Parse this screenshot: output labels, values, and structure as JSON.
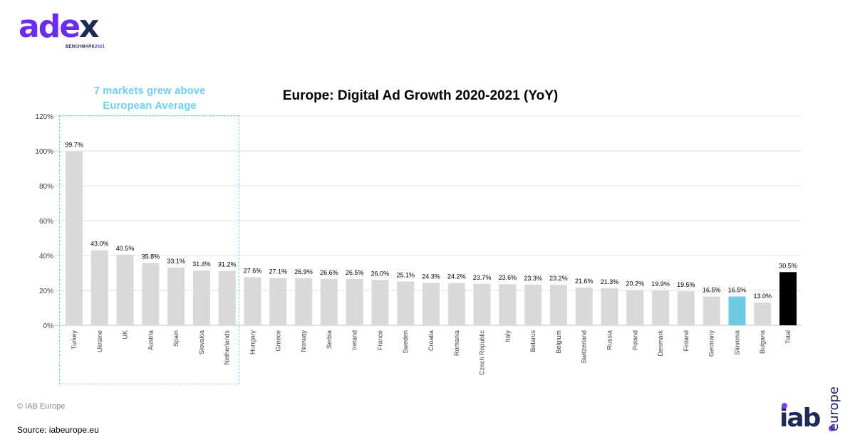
{
  "logo": {
    "brand": "adex",
    "sub": "BENCHMARK",
    "year": "2021"
  },
  "callout": {
    "line1": "7 markets grew above",
    "line2": "European Average"
  },
  "footer": {
    "copyright": "© IAB Europe",
    "source": "Source: iabeurope.eu"
  },
  "iab_logo": {
    "text": "iab",
    "sub": "europe"
  },
  "colors": {
    "bar": "#d9d9d9",
    "highlight": "#6fc9e2",
    "total": "#000000",
    "callout": "#6fd0ec"
  },
  "chart_data": {
    "type": "bar",
    "title": "Europe: Digital Ad Growth 2020-2021 (YoY)",
    "ylim": [
      0,
      120
    ],
    "yticks": [
      "0%",
      "20%",
      "40%",
      "60%",
      "80%",
      "100%",
      "120%"
    ],
    "grid": true,
    "categories": [
      "Turkey",
      "Ukraine",
      "UK",
      "Austria",
      "Spain",
      "Slovakia",
      "Netherlands",
      "Hungary",
      "Greece",
      "Norway",
      "Serbia",
      "Ireland",
      "France",
      "Sweden",
      "Croatia",
      "Romania",
      "Czech Republic",
      "Italy",
      "Belarus",
      "Belgium",
      "Switzerland",
      "Russia",
      "Poland",
      "Denmark",
      "Finland",
      "Germany",
      "Slovenia",
      "Bulgaria",
      "Total"
    ],
    "values": [
      99.7,
      43.0,
      40.5,
      35.8,
      33.1,
      31.4,
      31.2,
      27.6,
      27.1,
      26.9,
      26.6,
      26.5,
      26.0,
      25.1,
      24.3,
      24.2,
      23.7,
      23.6,
      23.3,
      23.2,
      21.6,
      21.3,
      20.2,
      19.9,
      19.5,
      16.5,
      16.5,
      13.0,
      30.5
    ],
    "labels": [
      "99.7%",
      "43.0%",
      "40.5%",
      "35.8%",
      "33.1%",
      "31.4%",
      "31.2%",
      "27.6%",
      "27.1%",
      "26.9%",
      "26.6%",
      "26.5%",
      "26.0%",
      "25.1%",
      "24.3%",
      "24.2%",
      "23.7%",
      "23.6%",
      "23.3%",
      "23.2%",
      "21.6%",
      "21.3%",
      "20.2%",
      "19.9%",
      "19.5%",
      "16.5%",
      "16.5%",
      "13.0%",
      "30.5%"
    ],
    "highlighted": [
      "Slovenia"
    ],
    "total_category": "Total"
  }
}
